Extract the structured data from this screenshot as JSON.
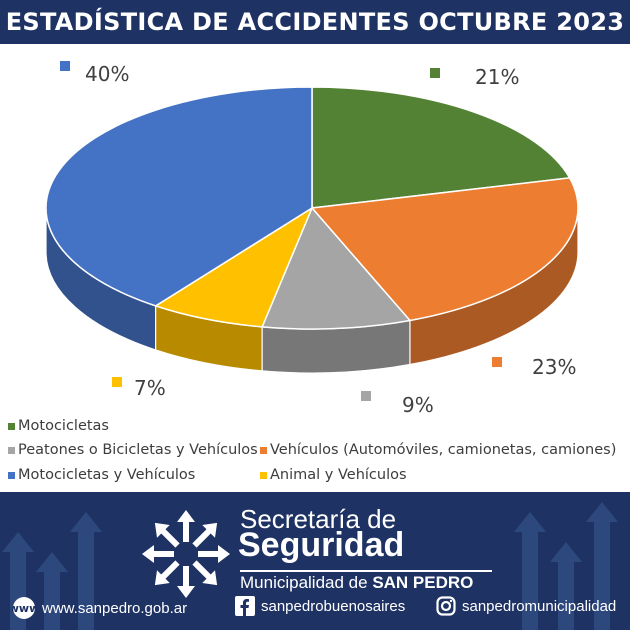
{
  "header": {
    "title": "ESTADÍSTICA DE ACCIDENTES OCTUBRE 2023"
  },
  "chart_data": {
    "type": "pie",
    "title": "ESTADÍSTICA DE ACCIDENTES OCTUBRE 2023",
    "categories": [
      "Motocicletas",
      "Vehículos (Automóviles, camionetas, camiones)",
      "Peatones o Bicicletas y Vehículos",
      "Animal y Vehículos",
      "Motocicletas y Vehículos"
    ],
    "values": [
      21,
      23,
      9,
      7,
      40
    ],
    "labels": [
      "21%",
      "23%",
      "9%",
      "7%",
      "40%"
    ],
    "colors": [
      "#548235",
      "#ed7d31",
      "#a5a5a5",
      "#ffc000",
      "#4472c4"
    ],
    "legend_position": "bottom"
  },
  "legend": {
    "items": [
      {
        "label": "Motocicletas",
        "color": "#548235"
      },
      {
        "label": "Peatones o Bicicletas y Vehículos",
        "color": "#a5a5a5"
      },
      {
        "label": "Vehículos (Automóviles, camionetas, camiones)",
        "color": "#ed7d31"
      },
      {
        "label": "Motocicletas y Vehículos",
        "color": "#4472c4"
      },
      {
        "label": "Animal y Vehículos",
        "color": "#ffc000"
      }
    ]
  },
  "footer": {
    "line1": "Secretaría de",
    "line2": "Seguridad",
    "line3_prefix": "Municipalidad de ",
    "line3_bold": "SAN PEDRO",
    "website": "www.sanpedro.gob.ar",
    "facebook": "sanpedrobuenosaires",
    "instagram": "sanpedromunicipalidad",
    "icons": [
      "globe-icon",
      "facebook-icon",
      "instagram-icon",
      "secretaria-logo"
    ]
  }
}
